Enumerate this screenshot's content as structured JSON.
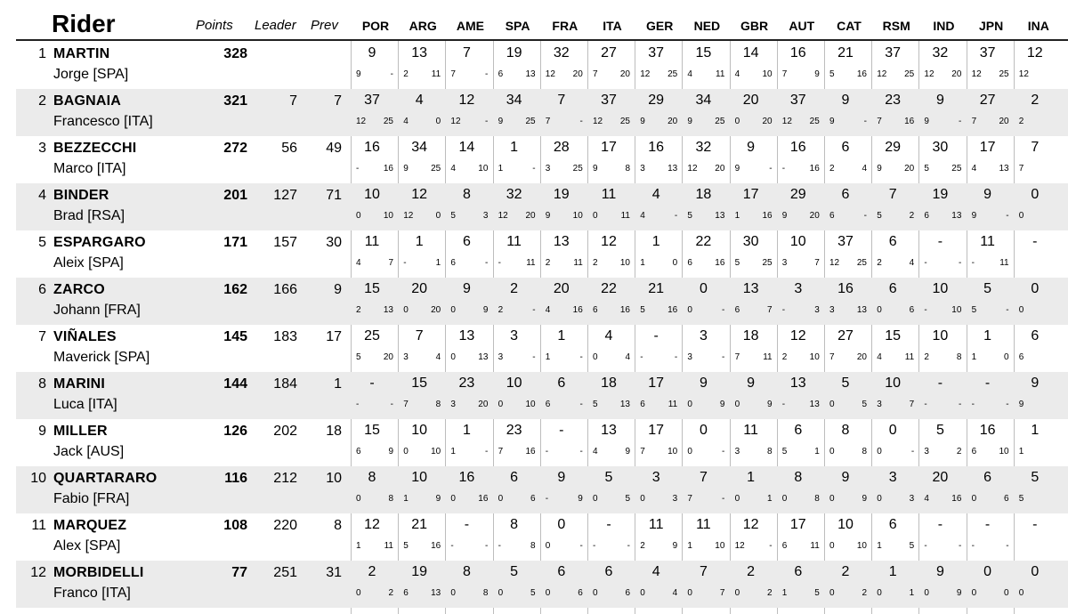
{
  "header": {
    "rider": "Rider",
    "points": "Points",
    "leader": "Leader",
    "prev": "Prev",
    "races": [
      "POR",
      "ARG",
      "AME",
      "SPA",
      "FRA",
      "ITA",
      "GER",
      "NED",
      "GBR",
      "AUT",
      "CAT",
      "RSM",
      "IND",
      "JPN",
      "INA"
    ]
  },
  "colors": {
    "shade": "#ebebeb",
    "grid": "#bdbdbd",
    "rule": "#222222"
  },
  "riders": [
    {
      "pos": "1",
      "last": "MARTIN",
      "first": "Jorge [SPA]",
      "points": "328",
      "leader": "",
      "prev": "",
      "races": [
        [
          "9",
          "9",
          "-"
        ],
        [
          "13",
          "2",
          "11"
        ],
        [
          "7",
          "7",
          "-"
        ],
        [
          "19",
          "6",
          "13"
        ],
        [
          "32",
          "12",
          "20"
        ],
        [
          "27",
          "7",
          "20"
        ],
        [
          "37",
          "12",
          "25"
        ],
        [
          "15",
          "4",
          "11"
        ],
        [
          "14",
          "4",
          "10"
        ],
        [
          "16",
          "7",
          "9"
        ],
        [
          "21",
          "5",
          "16"
        ],
        [
          "37",
          "12",
          "25"
        ],
        [
          "32",
          "12",
          "20"
        ],
        [
          "37",
          "12",
          "25"
        ],
        [
          "12",
          "12",
          ""
        ]
      ]
    },
    {
      "pos": "2",
      "last": "BAGNAIA",
      "first": "Francesco [ITA]",
      "points": "321",
      "leader": "7",
      "prev": "7",
      "races": [
        [
          "37",
          "12",
          "25"
        ],
        [
          "4",
          "4",
          "0"
        ],
        [
          "12",
          "12",
          "-"
        ],
        [
          "34",
          "9",
          "25"
        ],
        [
          "7",
          "7",
          "-"
        ],
        [
          "37",
          "12",
          "25"
        ],
        [
          "29",
          "9",
          "20"
        ],
        [
          "34",
          "9",
          "25"
        ],
        [
          "20",
          "0",
          "20"
        ],
        [
          "37",
          "12",
          "25"
        ],
        [
          "9",
          "9",
          "-"
        ],
        [
          "23",
          "7",
          "16"
        ],
        [
          "9",
          "9",
          "-"
        ],
        [
          "27",
          "7",
          "20"
        ],
        [
          "2",
          "2",
          ""
        ]
      ]
    },
    {
      "pos": "3",
      "last": "BEZZECCHI",
      "first": "Marco [ITA]",
      "points": "272",
      "leader": "56",
      "prev": "49",
      "races": [
        [
          "16",
          "-",
          "16"
        ],
        [
          "34",
          "9",
          "25"
        ],
        [
          "14",
          "4",
          "10"
        ],
        [
          "1",
          "1",
          "-"
        ],
        [
          "28",
          "3",
          "25"
        ],
        [
          "17",
          "9",
          "8"
        ],
        [
          "16",
          "3",
          "13"
        ],
        [
          "32",
          "12",
          "20"
        ],
        [
          "9",
          "9",
          "-"
        ],
        [
          "16",
          "-",
          "16"
        ],
        [
          "6",
          "2",
          "4"
        ],
        [
          "29",
          "9",
          "20"
        ],
        [
          "30",
          "5",
          "25"
        ],
        [
          "17",
          "4",
          "13"
        ],
        [
          "7",
          "7",
          ""
        ]
      ]
    },
    {
      "pos": "4",
      "last": "BINDER",
      "first": "Brad [RSA]",
      "points": "201",
      "leader": "127",
      "prev": "71",
      "races": [
        [
          "10",
          "0",
          "10"
        ],
        [
          "12",
          "12",
          "0"
        ],
        [
          "8",
          "5",
          "3"
        ],
        [
          "32",
          "12",
          "20"
        ],
        [
          "19",
          "9",
          "10"
        ],
        [
          "11",
          "0",
          "11"
        ],
        [
          "4",
          "4",
          "-"
        ],
        [
          "18",
          "5",
          "13"
        ],
        [
          "17",
          "1",
          "16"
        ],
        [
          "29",
          "9",
          "20"
        ],
        [
          "6",
          "6",
          "-"
        ],
        [
          "7",
          "5",
          "2"
        ],
        [
          "19",
          "6",
          "13"
        ],
        [
          "9",
          "9",
          "-"
        ],
        [
          "0",
          "0",
          ""
        ]
      ]
    },
    {
      "pos": "5",
      "last": "ESPARGARO",
      "first": "Aleix [SPA]",
      "points": "171",
      "leader": "157",
      "prev": "30",
      "races": [
        [
          "11",
          "4",
          "7"
        ],
        [
          "1",
          "-",
          "1"
        ],
        [
          "6",
          "6",
          "-"
        ],
        [
          "11",
          "-",
          "11"
        ],
        [
          "13",
          "2",
          "11"
        ],
        [
          "12",
          "2",
          "10"
        ],
        [
          "1",
          "1",
          "0"
        ],
        [
          "22",
          "6",
          "16"
        ],
        [
          "30",
          "5",
          "25"
        ],
        [
          "10",
          "3",
          "7"
        ],
        [
          "37",
          "12",
          "25"
        ],
        [
          "6",
          "2",
          "4"
        ],
        [
          "-",
          "-",
          "-"
        ],
        [
          "11",
          "-",
          "11"
        ],
        [
          "-",
          "",
          ""
        ]
      ]
    },
    {
      "pos": "6",
      "last": "ZARCO",
      "first": "Johann [FRA]",
      "points": "162",
      "leader": "166",
      "prev": "9",
      "races": [
        [
          "15",
          "2",
          "13"
        ],
        [
          "20",
          "0",
          "20"
        ],
        [
          "9",
          "0",
          "9"
        ],
        [
          "2",
          "2",
          "-"
        ],
        [
          "20",
          "4",
          "16"
        ],
        [
          "22",
          "6",
          "16"
        ],
        [
          "21",
          "5",
          "16"
        ],
        [
          "0",
          "0",
          "-"
        ],
        [
          "13",
          "6",
          "7"
        ],
        [
          "3",
          "-",
          "3"
        ],
        [
          "16",
          "3",
          "13"
        ],
        [
          "6",
          "0",
          "6"
        ],
        [
          "10",
          "-",
          "10"
        ],
        [
          "5",
          "5",
          "-"
        ],
        [
          "0",
          "0",
          ""
        ]
      ]
    },
    {
      "pos": "7",
      "last": "VIÑALES",
      "first": "Maverick [SPA]",
      "points": "145",
      "leader": "183",
      "prev": "17",
      "races": [
        [
          "25",
          "5",
          "20"
        ],
        [
          "7",
          "3",
          "4"
        ],
        [
          "13",
          "0",
          "13"
        ],
        [
          "3",
          "3",
          "-"
        ],
        [
          "1",
          "1",
          "-"
        ],
        [
          "4",
          "0",
          "4"
        ],
        [
          "-",
          "-",
          "-"
        ],
        [
          "3",
          "3",
          "-"
        ],
        [
          "18",
          "7",
          "11"
        ],
        [
          "12",
          "2",
          "10"
        ],
        [
          "27",
          "7",
          "20"
        ],
        [
          "15",
          "4",
          "11"
        ],
        [
          "10",
          "2",
          "8"
        ],
        [
          "1",
          "1",
          "0"
        ],
        [
          "6",
          "6",
          ""
        ]
      ]
    },
    {
      "pos": "8",
      "last": "MARINI",
      "first": "Luca [ITA]",
      "points": "144",
      "leader": "184",
      "prev": "1",
      "races": [
        [
          "-",
          "-",
          "-"
        ],
        [
          "15",
          "7",
          "8"
        ],
        [
          "23",
          "3",
          "20"
        ],
        [
          "10",
          "0",
          "10"
        ],
        [
          "6",
          "6",
          "-"
        ],
        [
          "18",
          "5",
          "13"
        ],
        [
          "17",
          "6",
          "11"
        ],
        [
          "9",
          "0",
          "9"
        ],
        [
          "9",
          "0",
          "9"
        ],
        [
          "13",
          "-",
          "13"
        ],
        [
          "5",
          "0",
          "5"
        ],
        [
          "10",
          "3",
          "7"
        ],
        [
          "-",
          "-",
          "-"
        ],
        [
          "-",
          "-",
          "-"
        ],
        [
          "9",
          "9",
          ""
        ]
      ]
    },
    {
      "pos": "9",
      "last": "MILLER",
      "first": "Jack [AUS]",
      "points": "126",
      "leader": "202",
      "prev": "18",
      "races": [
        [
          "15",
          "6",
          "9"
        ],
        [
          "10",
          "0",
          "10"
        ],
        [
          "1",
          "1",
          "-"
        ],
        [
          "23",
          "7",
          "16"
        ],
        [
          "-",
          "-",
          "-"
        ],
        [
          "13",
          "4",
          "9"
        ],
        [
          "17",
          "7",
          "10"
        ],
        [
          "0",
          "0",
          "-"
        ],
        [
          "11",
          "3",
          "8"
        ],
        [
          "6",
          "5",
          "1"
        ],
        [
          "8",
          "0",
          "8"
        ],
        [
          "0",
          "0",
          "-"
        ],
        [
          "5",
          "3",
          "2"
        ],
        [
          "16",
          "6",
          "10"
        ],
        [
          "1",
          "1",
          ""
        ]
      ]
    },
    {
      "pos": "10",
      "last": "QUARTARARO",
      "first": "Fabio [FRA]",
      "points": "116",
      "leader": "212",
      "prev": "10",
      "races": [
        [
          "8",
          "0",
          "8"
        ],
        [
          "10",
          "1",
          "9"
        ],
        [
          "16",
          "0",
          "16"
        ],
        [
          "6",
          "0",
          "6"
        ],
        [
          "9",
          "-",
          "9"
        ],
        [
          "5",
          "0",
          "5"
        ],
        [
          "3",
          "0",
          "3"
        ],
        [
          "7",
          "7",
          "-"
        ],
        [
          "1",
          "0",
          "1"
        ],
        [
          "8",
          "0",
          "8"
        ],
        [
          "9",
          "0",
          "9"
        ],
        [
          "3",
          "0",
          "3"
        ],
        [
          "20",
          "4",
          "16"
        ],
        [
          "6",
          "0",
          "6"
        ],
        [
          "5",
          "5",
          ""
        ]
      ]
    },
    {
      "pos": "11",
      "last": "MARQUEZ",
      "first": "Alex [SPA]",
      "points": "108",
      "leader": "220",
      "prev": "8",
      "races": [
        [
          "12",
          "1",
          "11"
        ],
        [
          "21",
          "5",
          "16"
        ],
        [
          "-",
          "-",
          "-"
        ],
        [
          "8",
          "-",
          "8"
        ],
        [
          "0",
          "0",
          "-"
        ],
        [
          "-",
          "-",
          "-"
        ],
        [
          "11",
          "2",
          "9"
        ],
        [
          "11",
          "1",
          "10"
        ],
        [
          "12",
          "12",
          "-"
        ],
        [
          "17",
          "6",
          "11"
        ],
        [
          "10",
          "0",
          "10"
        ],
        [
          "6",
          "1",
          "5"
        ],
        [
          "-",
          "-",
          "-"
        ],
        [
          "-",
          "-",
          "-"
        ],
        [
          "-",
          "",
          ""
        ]
      ]
    },
    {
      "pos": "12",
      "last": "MORBIDELLI",
      "first": "Franco [ITA]",
      "points": "77",
      "leader": "251",
      "prev": "31",
      "races": [
        [
          "2",
          "0",
          "2"
        ],
        [
          "19",
          "6",
          "13"
        ],
        [
          "8",
          "0",
          "8"
        ],
        [
          "5",
          "0",
          "5"
        ],
        [
          "6",
          "0",
          "6"
        ],
        [
          "6",
          "0",
          "6"
        ],
        [
          "4",
          "0",
          "4"
        ],
        [
          "7",
          "0",
          "7"
        ],
        [
          "2",
          "0",
          "2"
        ],
        [
          "6",
          "1",
          "5"
        ],
        [
          "2",
          "0",
          "2"
        ],
        [
          "1",
          "0",
          "1"
        ],
        [
          "9",
          "0",
          "9"
        ],
        [
          "0",
          "0",
          "0"
        ],
        [
          "0",
          "0",
          ""
        ]
      ]
    }
  ]
}
